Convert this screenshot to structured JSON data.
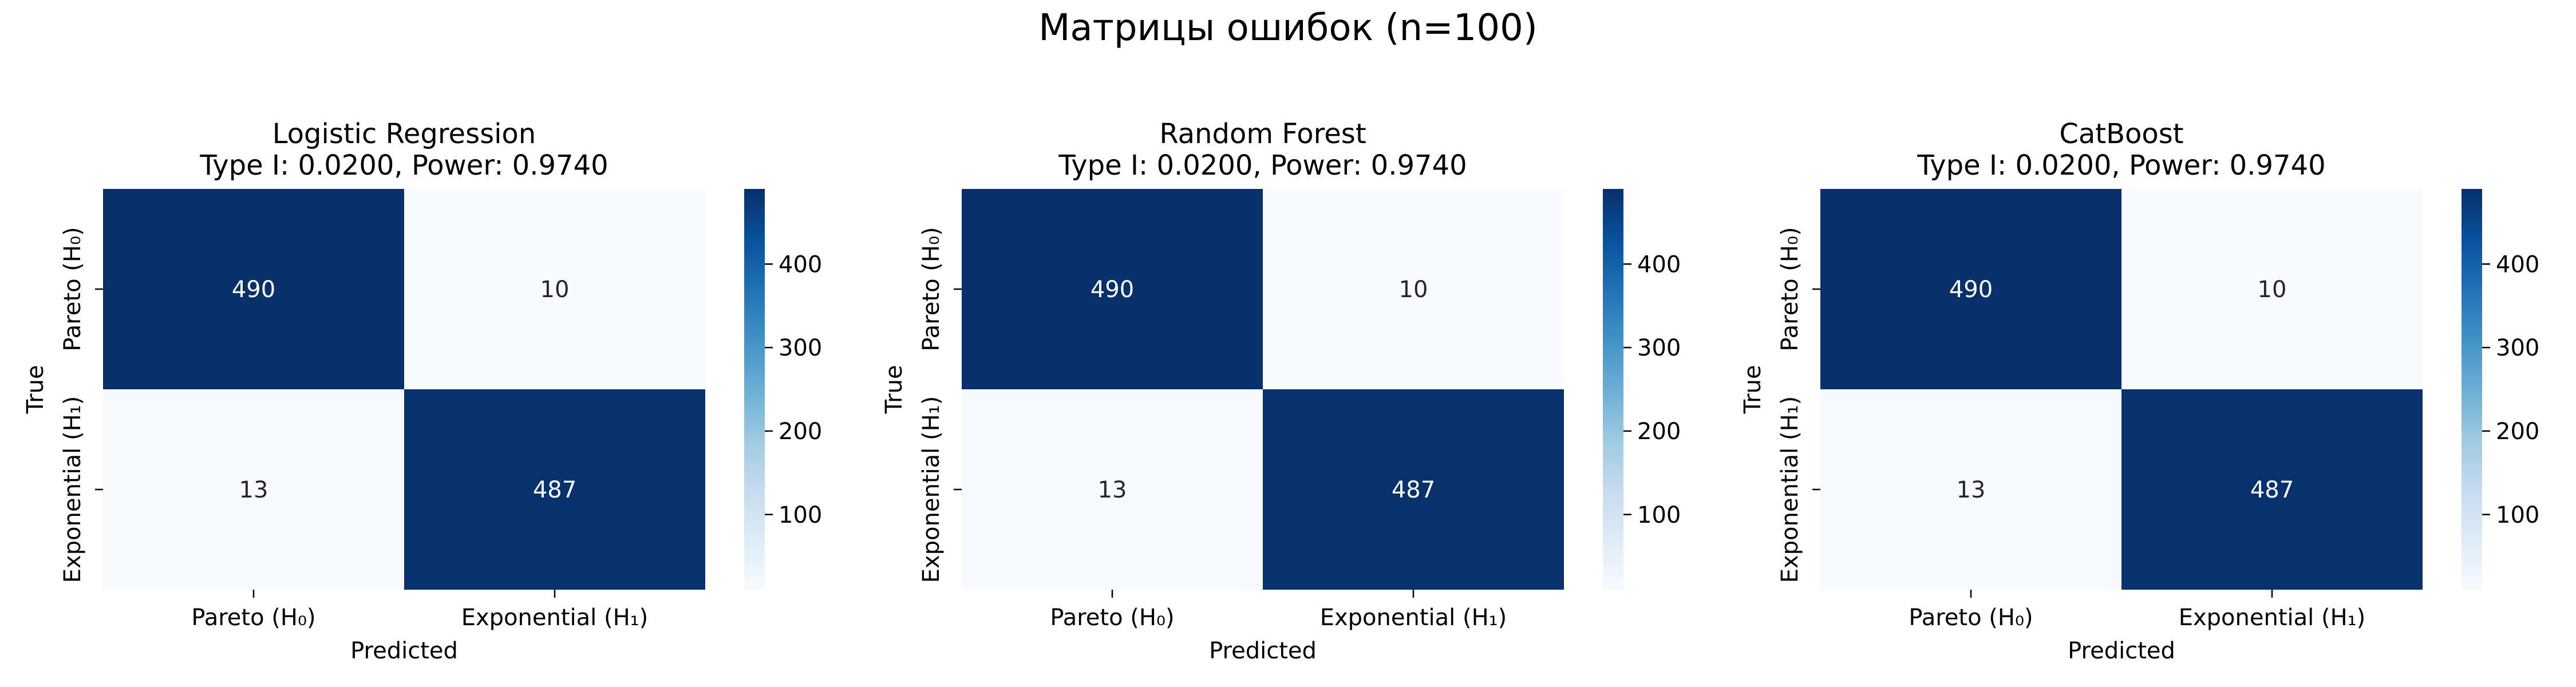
{
  "figure": {
    "suptitle": "Матрицы ошибок (n=100)"
  },
  "colorbar": {
    "ticks": [
      100,
      200,
      300,
      400
    ],
    "vmin": 10,
    "vmax": 490
  },
  "colors": {
    "low": "#f7fbff",
    "high": "#08306b",
    "text_light": "#ffffff",
    "text_dark": "#262626"
  },
  "chart_data": [
    {
      "type": "heatmap",
      "title": "Logistic Regression",
      "subtitle": "Type I: 0.0200, Power: 0.9740",
      "xlabel": "Predicted",
      "ylabel": "True",
      "x_categories": [
        "Pareto (H₀)",
        "Exponential (H₁)"
      ],
      "y_categories": [
        "Pareto (H₀)",
        "Exponential (H₁)"
      ],
      "values": [
        [
          490,
          10
        ],
        [
          13,
          487
        ]
      ]
    },
    {
      "type": "heatmap",
      "title": "Random Forest",
      "subtitle": "Type I: 0.0200, Power: 0.9740",
      "xlabel": "Predicted",
      "ylabel": "True",
      "x_categories": [
        "Pareto (H₀)",
        "Exponential (H₁)"
      ],
      "y_categories": [
        "Pareto (H₀)",
        "Exponential (H₁)"
      ],
      "values": [
        [
          490,
          10
        ],
        [
          13,
          487
        ]
      ]
    },
    {
      "type": "heatmap",
      "title": "CatBoost",
      "subtitle": "Type I: 0.0200, Power: 0.9740",
      "xlabel": "Predicted",
      "ylabel": "True",
      "x_categories": [
        "Pareto (H₀)",
        "Exponential (H₁)"
      ],
      "y_categories": [
        "Pareto (H₀)",
        "Exponential (H₁)"
      ],
      "values": [
        [
          490,
          10
        ],
        [
          13,
          487
        ]
      ]
    }
  ]
}
